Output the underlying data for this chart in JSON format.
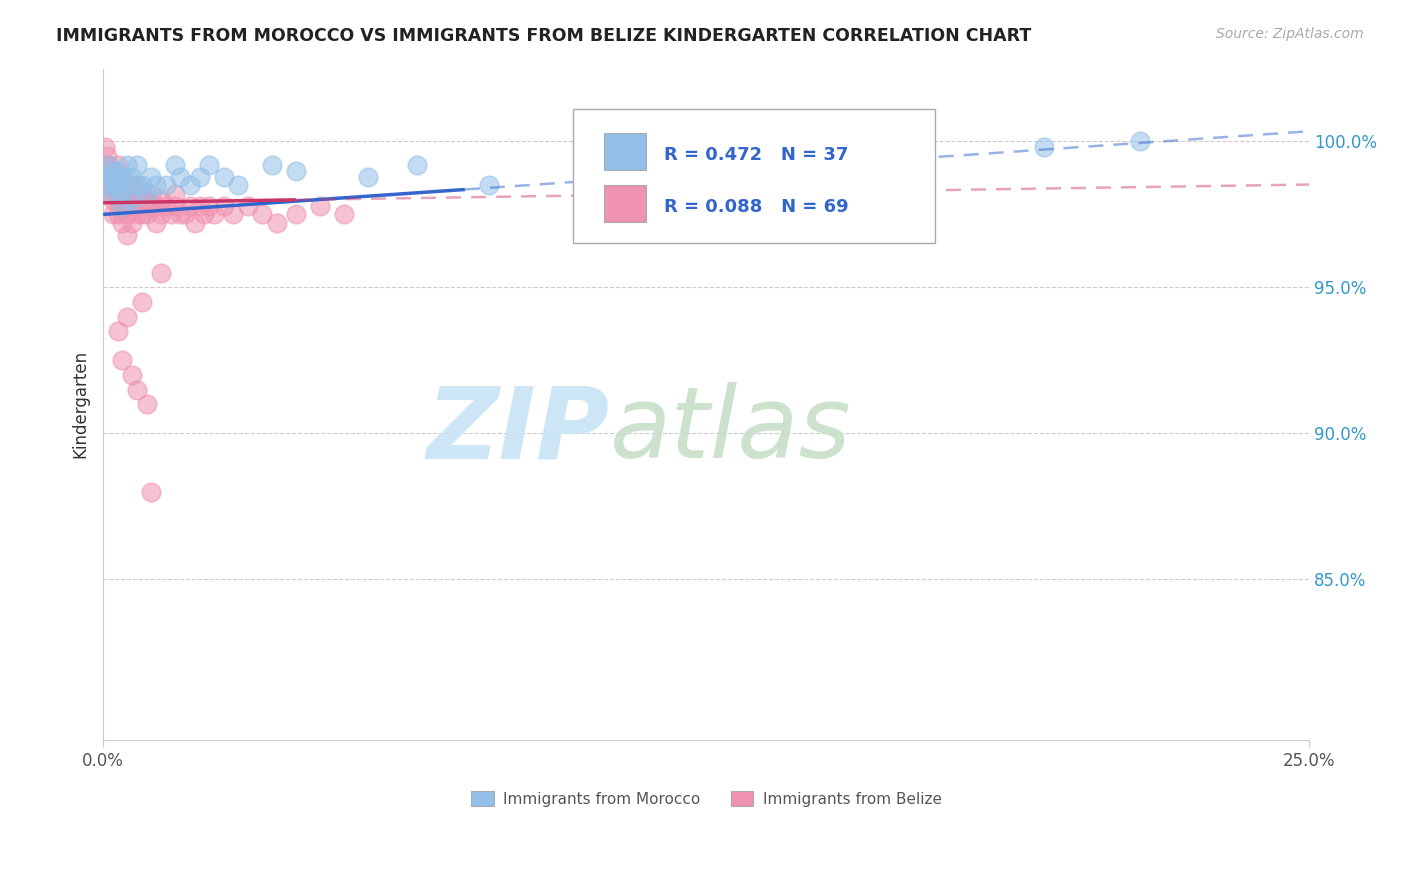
{
  "title": "IMMIGRANTS FROM MOROCCO VS IMMIGRANTS FROM BELIZE KINDERGARTEN CORRELATION CHART",
  "source": "Source: ZipAtlas.com",
  "ylabel": "Kindergarten",
  "ytick_labels": [
    "100.0%",
    "95.0%",
    "90.0%",
    "85.0%"
  ],
  "ytick_values": [
    1.0,
    0.95,
    0.9,
    0.85
  ],
  "xlim": [
    0.0,
    0.25
  ],
  "ylim": [
    0.795,
    1.025
  ],
  "morocco_color": "#92c0e8",
  "belize_color": "#f093b0",
  "morocco_line_color": "#3366cc",
  "belize_line_color": "#cc3366",
  "morocco_R": 0.472,
  "morocco_N": 37,
  "belize_R": 0.088,
  "belize_N": 69,
  "legend_text_color": "#3366cc",
  "watermark_zip_color": "#c8e4f5",
  "watermark_atlas_color": "#c8dfc8",
  "background_color": "#ffffff",
  "morocco_x": [
    0.0005,
    0.001,
    0.0012,
    0.0015,
    0.002,
    0.002,
    0.0025,
    0.003,
    0.003,
    0.0035,
    0.004,
    0.004,
    0.005,
    0.005,
    0.006,
    0.006,
    0.007,
    0.007,
    0.008,
    0.009,
    0.01,
    0.011,
    0.013,
    0.015,
    0.016,
    0.018,
    0.02,
    0.022,
    0.025,
    0.028,
    0.035,
    0.04,
    0.055,
    0.065,
    0.08,
    0.195,
    0.215
  ],
  "morocco_y": [
    0.988,
    0.992,
    0.985,
    0.99,
    0.988,
    0.982,
    0.985,
    0.99,
    0.985,
    0.982,
    0.988,
    0.978,
    0.992,
    0.985,
    0.988,
    0.98,
    0.992,
    0.985,
    0.985,
    0.982,
    0.988,
    0.985,
    0.985,
    0.992,
    0.988,
    0.985,
    0.988,
    0.992,
    0.988,
    0.985,
    0.992,
    0.99,
    0.988,
    0.992,
    0.985,
    0.998,
    1.0
  ],
  "belize_x": [
    0.0003,
    0.0005,
    0.0008,
    0.001,
    0.001,
    0.001,
    0.0015,
    0.002,
    0.002,
    0.002,
    0.002,
    0.003,
    0.003,
    0.003,
    0.003,
    0.003,
    0.004,
    0.004,
    0.004,
    0.004,
    0.005,
    0.005,
    0.005,
    0.005,
    0.006,
    0.006,
    0.006,
    0.007,
    0.007,
    0.007,
    0.008,
    0.008,
    0.009,
    0.009,
    0.01,
    0.01,
    0.011,
    0.011,
    0.012,
    0.012,
    0.013,
    0.014,
    0.015,
    0.015,
    0.016,
    0.017,
    0.018,
    0.019,
    0.02,
    0.021,
    0.022,
    0.023,
    0.025,
    0.027,
    0.03,
    0.033,
    0.036,
    0.04,
    0.045,
    0.05,
    0.012,
    0.008,
    0.005,
    0.003,
    0.004,
    0.006,
    0.007,
    0.009,
    0.01
  ],
  "belize_y": [
    0.998,
    0.992,
    0.995,
    0.992,
    0.988,
    0.982,
    0.985,
    0.99,
    0.985,
    0.98,
    0.975,
    0.992,
    0.988,
    0.985,
    0.98,
    0.975,
    0.988,
    0.982,
    0.978,
    0.972,
    0.985,
    0.98,
    0.975,
    0.968,
    0.985,
    0.978,
    0.972,
    0.985,
    0.98,
    0.975,
    0.982,
    0.975,
    0.98,
    0.975,
    0.982,
    0.978,
    0.978,
    0.972,
    0.98,
    0.975,
    0.978,
    0.975,
    0.982,
    0.978,
    0.975,
    0.975,
    0.978,
    0.972,
    0.978,
    0.975,
    0.978,
    0.975,
    0.978,
    0.975,
    0.978,
    0.975,
    0.972,
    0.975,
    0.978,
    0.975,
    0.955,
    0.945,
    0.94,
    0.935,
    0.925,
    0.92,
    0.915,
    0.91,
    0.88
  ]
}
